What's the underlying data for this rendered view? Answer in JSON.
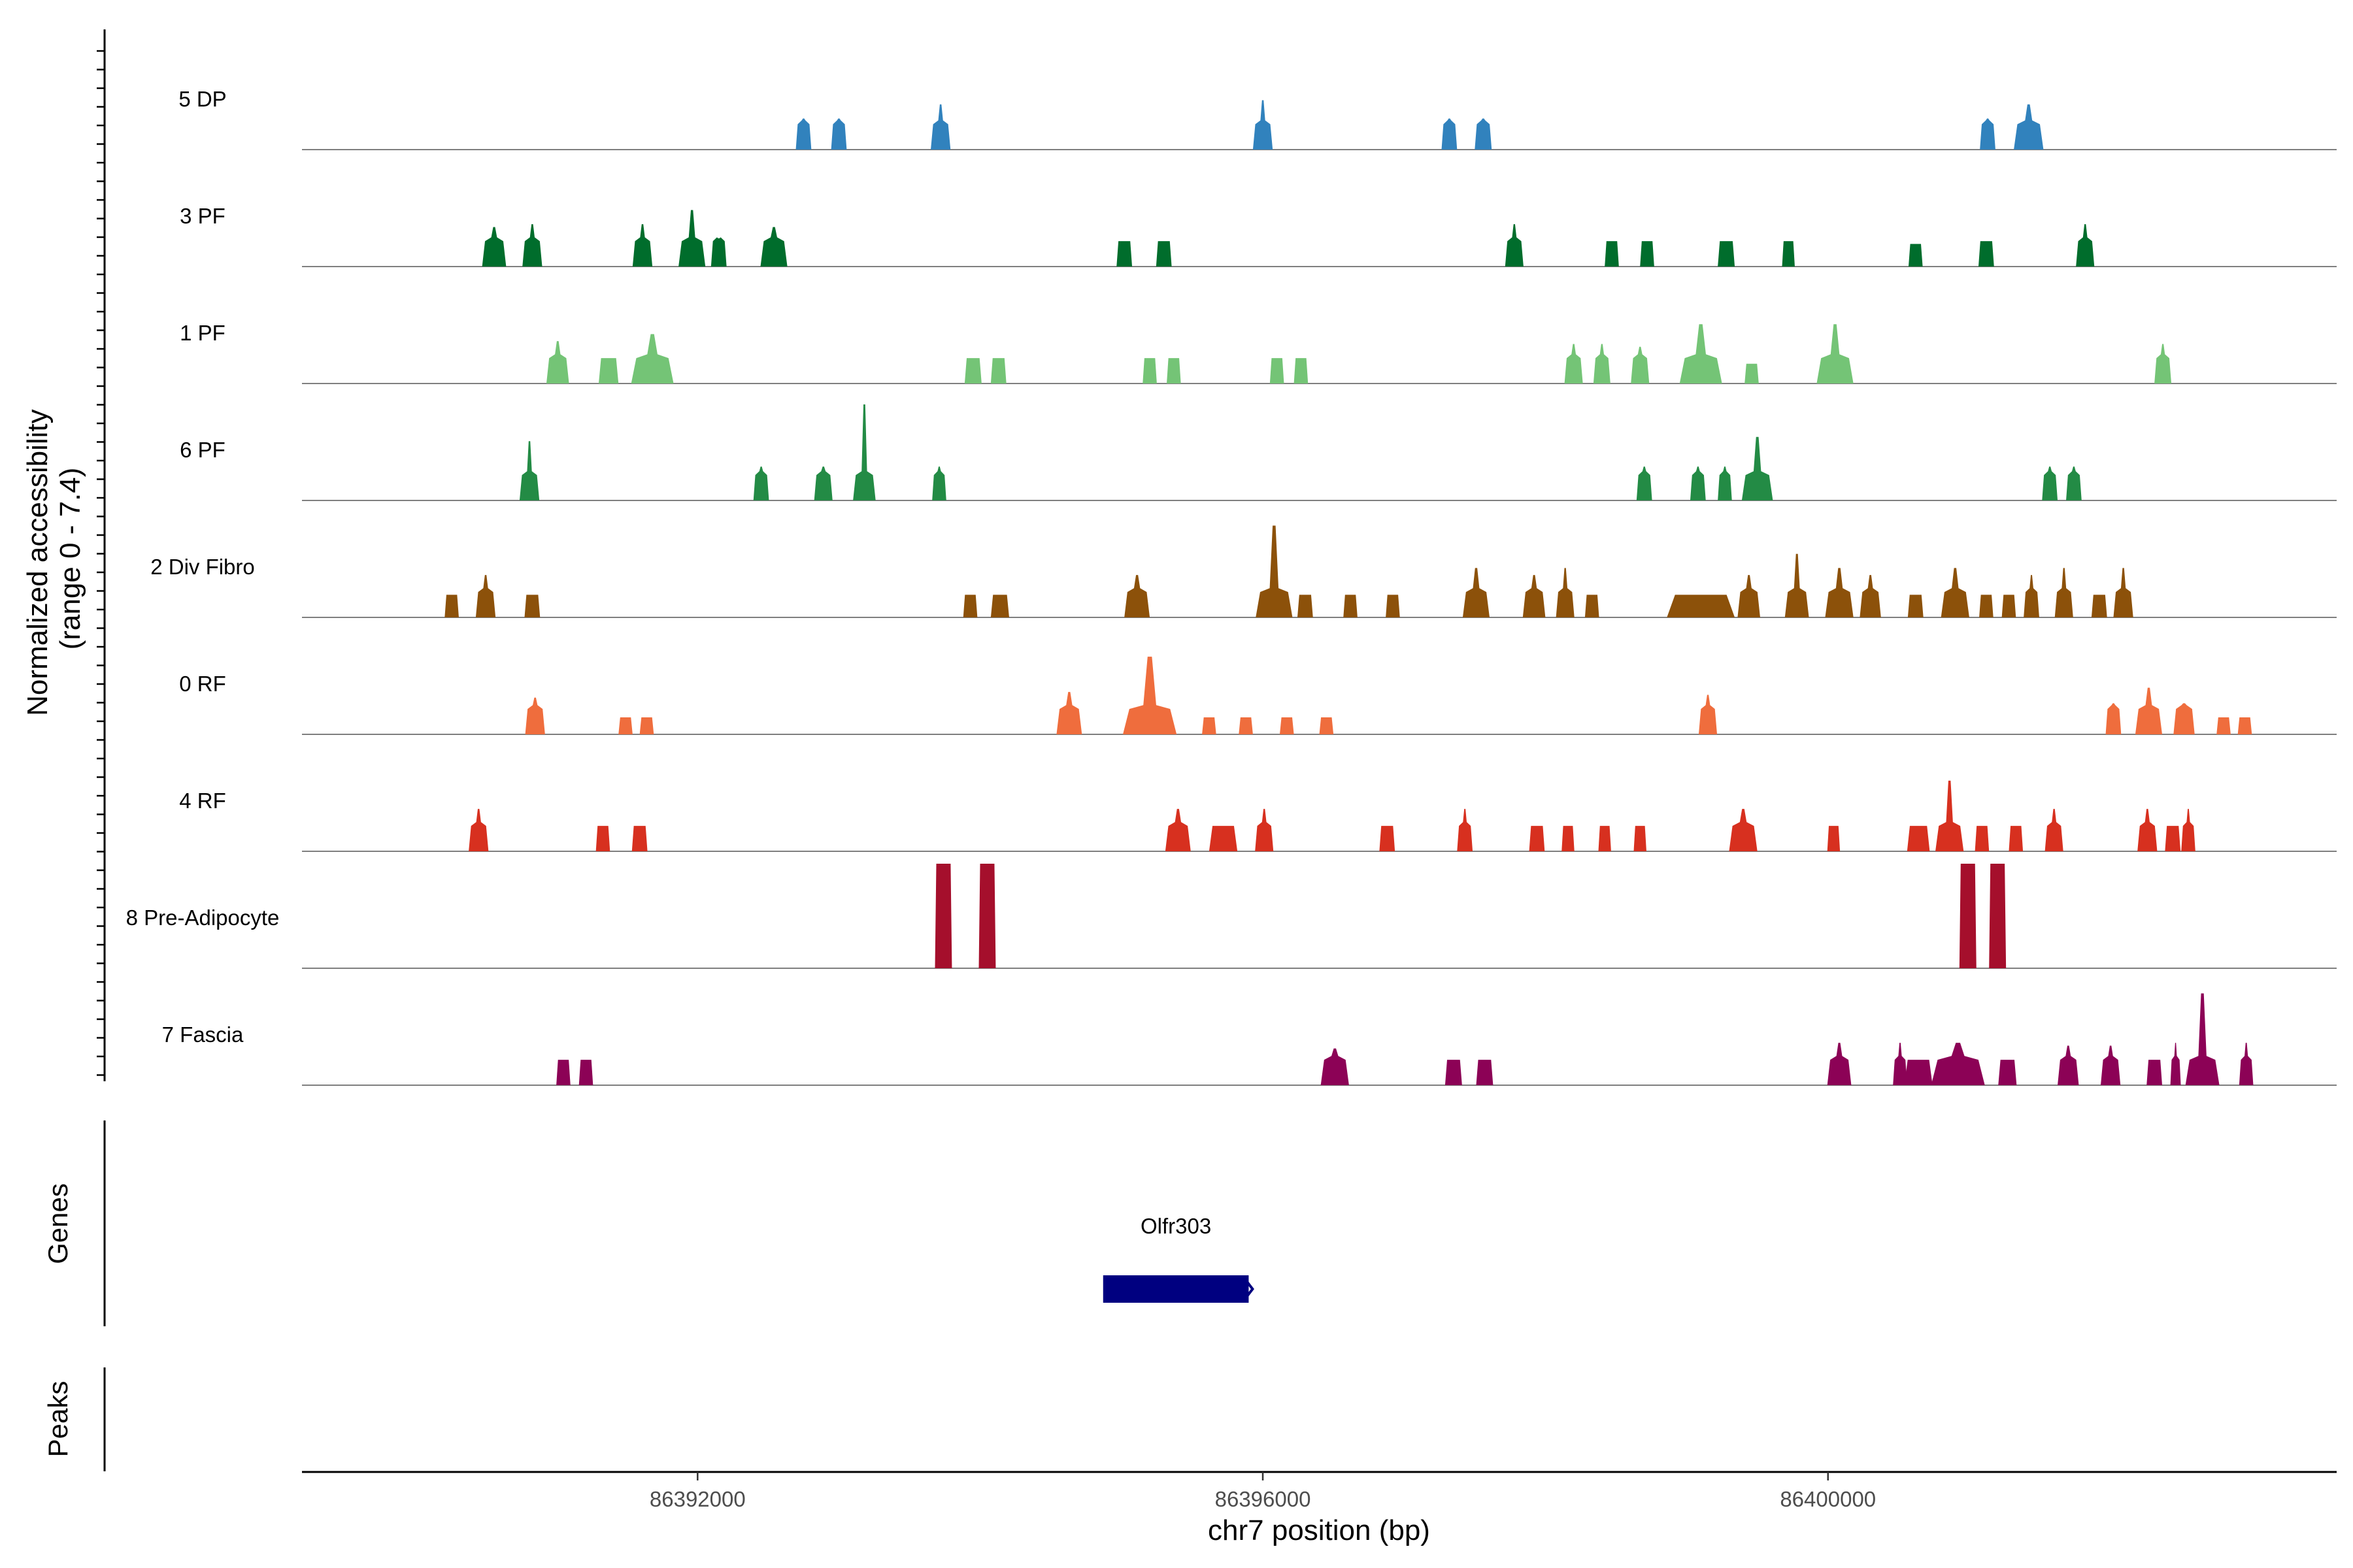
{
  "chart_data": {
    "type": "area",
    "title": "",
    "ylabel_line1": "Normalized accessibility",
    "ylabel_line2": "(range 0 - 7.4)",
    "xlabel": "chr7 position (bp)",
    "xlim": [
      86389200,
      86403600
    ],
    "ylim": [
      0,
      7.4
    ],
    "xticks": [
      {
        "value": 86392000,
        "label": "86392000"
      },
      {
        "value": 86396000,
        "label": "86396000"
      },
      {
        "value": 86400000,
        "label": "86400000"
      }
    ],
    "genes_label": "Genes",
    "peaks_label": "Peaks",
    "genes": [
      {
        "name": "Olfr303",
        "start": 86394870,
        "end": 86395900,
        "color": "#000080"
      }
    ],
    "series": [
      {
        "name": "5 DP",
        "color": "#3182bd",
        "peaks": [
          [
            86392750,
            110,
            2.2
          ],
          [
            86393000,
            110,
            2.2
          ],
          [
            86393720,
            140,
            3.2
          ],
          [
            86396000,
            140,
            3.5
          ],
          [
            86397320,
            110,
            2.2
          ],
          [
            86397560,
            120,
            2.2
          ],
          [
            86401130,
            110,
            2.2
          ],
          [
            86401420,
            210,
            3.2
          ]
        ]
      },
      {
        "name": "3 PF",
        "color": "#006d2c",
        "peaks": [
          [
            86390560,
            170,
            2.8
          ],
          [
            86390830,
            140,
            3.0
          ],
          [
            86391610,
            140,
            3.0
          ],
          [
            86391960,
            190,
            4.0
          ],
          [
            86392150,
            110,
            2.0
          ],
          [
            86392540,
            190,
            2.8
          ],
          [
            86395020,
            110,
            1.8
          ],
          [
            86395300,
            110,
            1.8
          ],
          [
            86397780,
            130,
            3.0
          ],
          [
            86398470,
            100,
            1.8
          ],
          [
            86398720,
            100,
            1.8
          ],
          [
            86399280,
            120,
            1.8
          ],
          [
            86399720,
            90,
            1.8
          ],
          [
            86400620,
            100,
            1.6
          ],
          [
            86401120,
            110,
            1.8
          ],
          [
            86401820,
            130,
            3.0
          ]
        ]
      },
      {
        "name": "1 PF",
        "color": "#74c476",
        "peaks": [
          [
            86391010,
            160,
            3.0
          ],
          [
            86391370,
            140,
            1.8
          ],
          [
            86391680,
            300,
            3.5
          ],
          [
            86393950,
            120,
            1.8
          ],
          [
            86394130,
            110,
            1.8
          ],
          [
            86395200,
            100,
            1.8
          ],
          [
            86395370,
            100,
            1.8
          ],
          [
            86396100,
            100,
            1.8
          ],
          [
            86396270,
            100,
            1.8
          ],
          [
            86398200,
            130,
            2.8
          ],
          [
            86398400,
            120,
            2.8
          ],
          [
            86398670,
            130,
            2.6
          ],
          [
            86399100,
            300,
            4.2
          ],
          [
            86399460,
            100,
            1.4
          ],
          [
            86400050,
            260,
            4.2
          ],
          [
            86402370,
            120,
            2.8
          ]
        ]
      },
      {
        "name": "6 PF",
        "color": "#238b45",
        "peaks": [
          [
            86390810,
            140,
            4.2
          ],
          [
            86392450,
            110,
            2.4
          ],
          [
            86392890,
            130,
            2.4
          ],
          [
            86393180,
            160,
            6.8
          ],
          [
            86393710,
            100,
            2.4
          ],
          [
            86398700,
            110,
            2.4
          ],
          [
            86399080,
            110,
            2.4
          ],
          [
            86399270,
            100,
            2.4
          ],
          [
            86399500,
            220,
            4.5
          ],
          [
            86401570,
            110,
            2.4
          ],
          [
            86401740,
            110,
            2.4
          ]
        ]
      },
      {
        "name": "2 Div Fibro",
        "color": "#8c510a",
        "peaks": [
          [
            86390260,
            100,
            1.6
          ],
          [
            86390500,
            140,
            3.0
          ],
          [
            86390830,
            110,
            1.6
          ],
          [
            86393930,
            100,
            1.6
          ],
          [
            86394140,
            130,
            1.6
          ],
          [
            86395110,
            180,
            3.0
          ],
          [
            86396080,
            260,
            6.5
          ],
          [
            86396300,
            110,
            1.6
          ],
          [
            86396620,
            100,
            1.6
          ],
          [
            86396920,
            100,
            1.6
          ],
          [
            86397510,
            190,
            3.5
          ],
          [
            86397920,
            160,
            3.0
          ],
          [
            86398140,
            130,
            3.5
          ],
          [
            86398330,
            100,
            1.6
          ],
          [
            86399100,
            480,
            1.6
          ],
          [
            86399440,
            160,
            3.0
          ],
          [
            86399780,
            170,
            4.5
          ],
          [
            86400080,
            200,
            3.5
          ],
          [
            86400300,
            150,
            3.0
          ],
          [
            86400620,
            110,
            1.6
          ],
          [
            86400900,
            200,
            3.5
          ],
          [
            86401120,
            100,
            1.6
          ],
          [
            86401280,
            100,
            1.6
          ],
          [
            86401440,
            110,
            3.0
          ],
          [
            86401670,
            130,
            3.5
          ],
          [
            86401920,
            110,
            1.6
          ],
          [
            86402090,
            140,
            3.5
          ]
        ]
      },
      {
        "name": "0 RF",
        "color": "#ef6d3d",
        "peaks": [
          [
            86390850,
            140,
            2.6
          ],
          [
            86391490,
            100,
            1.2
          ],
          [
            86391640,
            100,
            1.2
          ],
          [
            86394630,
            180,
            3.0
          ],
          [
            86395200,
            380,
            5.5
          ],
          [
            86395620,
            100,
            1.2
          ],
          [
            86395880,
            100,
            1.2
          ],
          [
            86396170,
            100,
            1.2
          ],
          [
            86396450,
            100,
            1.2
          ],
          [
            86399150,
            130,
            2.8
          ],
          [
            86402020,
            110,
            2.2
          ],
          [
            86402270,
            190,
            3.3
          ],
          [
            86402520,
            150,
            2.2
          ],
          [
            86402800,
            100,
            1.2
          ],
          [
            86402950,
            100,
            1.2
          ]
        ]
      },
      {
        "name": "4 RF",
        "color": "#d7301f",
        "peaks": [
          [
            86390450,
            140,
            3.0
          ],
          [
            86391330,
            100,
            1.8
          ],
          [
            86391590,
            110,
            1.8
          ],
          [
            86395400,
            180,
            3.0
          ],
          [
            86395720,
            200,
            1.8
          ],
          [
            86396010,
            130,
            3.0
          ],
          [
            86396880,
            110,
            1.8
          ],
          [
            86397430,
            110,
            3.0
          ],
          [
            86397940,
            110,
            1.8
          ],
          [
            86398160,
            90,
            1.8
          ],
          [
            86398420,
            90,
            1.8
          ],
          [
            86398670,
            90,
            1.8
          ],
          [
            86399400,
            200,
            3.0
          ],
          [
            86400040,
            90,
            1.8
          ],
          [
            86400640,
            160,
            1.8
          ],
          [
            86400860,
            200,
            5.0
          ],
          [
            86401090,
            100,
            1.8
          ],
          [
            86401330,
            100,
            1.8
          ],
          [
            86401600,
            130,
            3.0
          ],
          [
            86402260,
            140,
            3.0
          ],
          [
            86402440,
            110,
            1.8
          ],
          [
            86402550,
            100,
            3.0
          ]
        ]
      },
      {
        "name": "8 Pre-Adipocyte",
        "color": "#a50f2c",
        "bars": [
          [
            86393740,
            120,
            7.4
          ],
          [
            86394050,
            120,
            7.4
          ],
          [
            86400990,
            120,
            7.4
          ],
          [
            86401200,
            120,
            7.4
          ]
        ]
      },
      {
        "name": "7 Fascia",
        "color": "#8c0256",
        "peaks": [
          [
            86391050,
            100,
            1.8
          ],
          [
            86391210,
            100,
            1.8
          ],
          [
            86396510,
            200,
            2.6
          ],
          [
            86397350,
            120,
            1.8
          ],
          [
            86397570,
            120,
            1.8
          ],
          [
            86400080,
            170,
            3.0
          ],
          [
            86400510,
            100,
            3.0
          ],
          [
            86400640,
            200,
            1.8
          ],
          [
            86400920,
            380,
            3.0
          ],
          [
            86401270,
            130,
            1.8
          ],
          [
            86401700,
            150,
            2.8
          ],
          [
            86402000,
            140,
            2.8
          ],
          [
            86402310,
            110,
            1.8
          ],
          [
            86402460,
            60,
            3.0
          ],
          [
            86402650,
            240,
            6.5
          ],
          [
            86402960,
            100,
            3.0
          ]
        ]
      }
    ]
  }
}
